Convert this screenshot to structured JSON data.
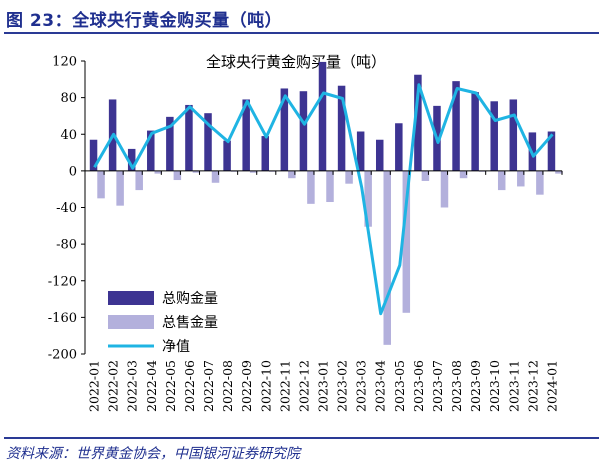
{
  "figure_title": "图 23：全球央行黄金购买量（吨）",
  "source": "资料来源：世界黄金协会，中国银河证券研究院",
  "colors": {
    "buy": "#3d3492",
    "sell": "#b3b0dc",
    "net": "#1fb4e3",
    "accent": "#1f2f8f"
  },
  "chart_data": {
    "type": "bar",
    "title": "全球央行黄金购买量（吨）",
    "xlabel": "",
    "ylabel": "",
    "ylim": [
      -200,
      120
    ],
    "yticks": [
      120,
      80,
      40,
      0,
      -40,
      -80,
      -120,
      -160,
      -200
    ],
    "categories": [
      "2022-01",
      "2022-02",
      "2022-03",
      "2022-04",
      "2022-05",
      "2022-06",
      "2022-07",
      "2022-08",
      "2022-09",
      "2022-10",
      "2022-11",
      "2022-12",
      "2023-01",
      "2023-02",
      "2023-03",
      "2023-04",
      "2023-05",
      "2023-06",
      "2023-07",
      "2023-08",
      "2023-09",
      "2023-10",
      "2023-11",
      "2023-12",
      "2024-01"
    ],
    "legend": [
      "总购金量",
      "总售金量",
      "净值"
    ],
    "legend_position": "bottom-left",
    "series": [
      {
        "name": "总购金量",
        "type": "bar",
        "values": [
          34,
          78,
          24,
          44,
          59,
          72,
          63,
          33,
          78,
          38,
          90,
          87,
          119,
          93,
          43,
          34,
          52,
          105,
          71,
          98,
          86,
          76,
          78,
          42,
          43
        ]
      },
      {
        "name": "总售金量",
        "type": "bar",
        "values": [
          -30,
          -38,
          -21,
          -3,
          -10,
          -2,
          -13,
          -1,
          -2,
          -1,
          -8,
          -36,
          -34,
          -14,
          -61,
          -190,
          -155,
          -11,
          -40,
          -8,
          -1,
          -21,
          -17,
          -26,
          -3
        ]
      },
      {
        "name": "净值",
        "type": "line",
        "values": [
          4,
          40,
          3,
          41,
          49,
          70,
          50,
          32,
          76,
          37,
          82,
          51,
          85,
          79,
          -18,
          -156,
          -103,
          94,
          31,
          90,
          85,
          55,
          61,
          16,
          40
        ]
      }
    ]
  }
}
